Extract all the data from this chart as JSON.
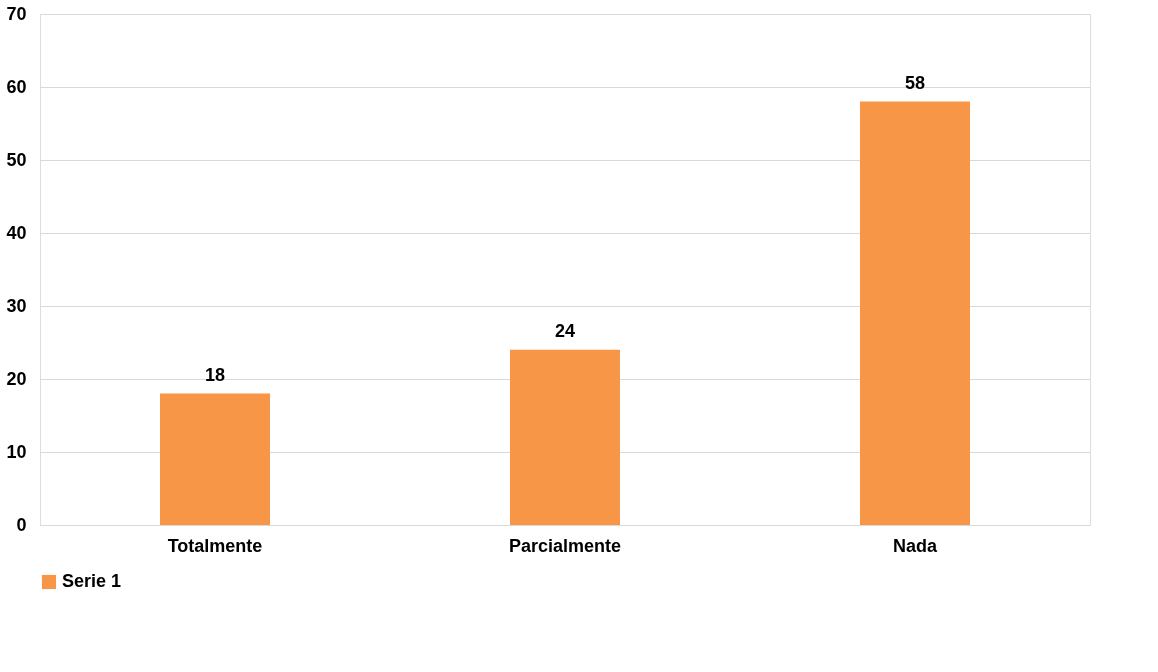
{
  "chart_data": {
    "type": "bar",
    "categories": [
      "Totalmente",
      "Parcialmente",
      "Nada"
    ],
    "series": [
      {
        "name": "Serie 1",
        "color": "#f79646",
        "values": [
          18,
          24,
          58
        ]
      }
    ],
    "ylim": [
      0,
      70
    ],
    "yticks": [
      0,
      10,
      20,
      30,
      40,
      50,
      60,
      70
    ],
    "grid": "y",
    "legend": "bottom",
    "data_labels": true
  }
}
